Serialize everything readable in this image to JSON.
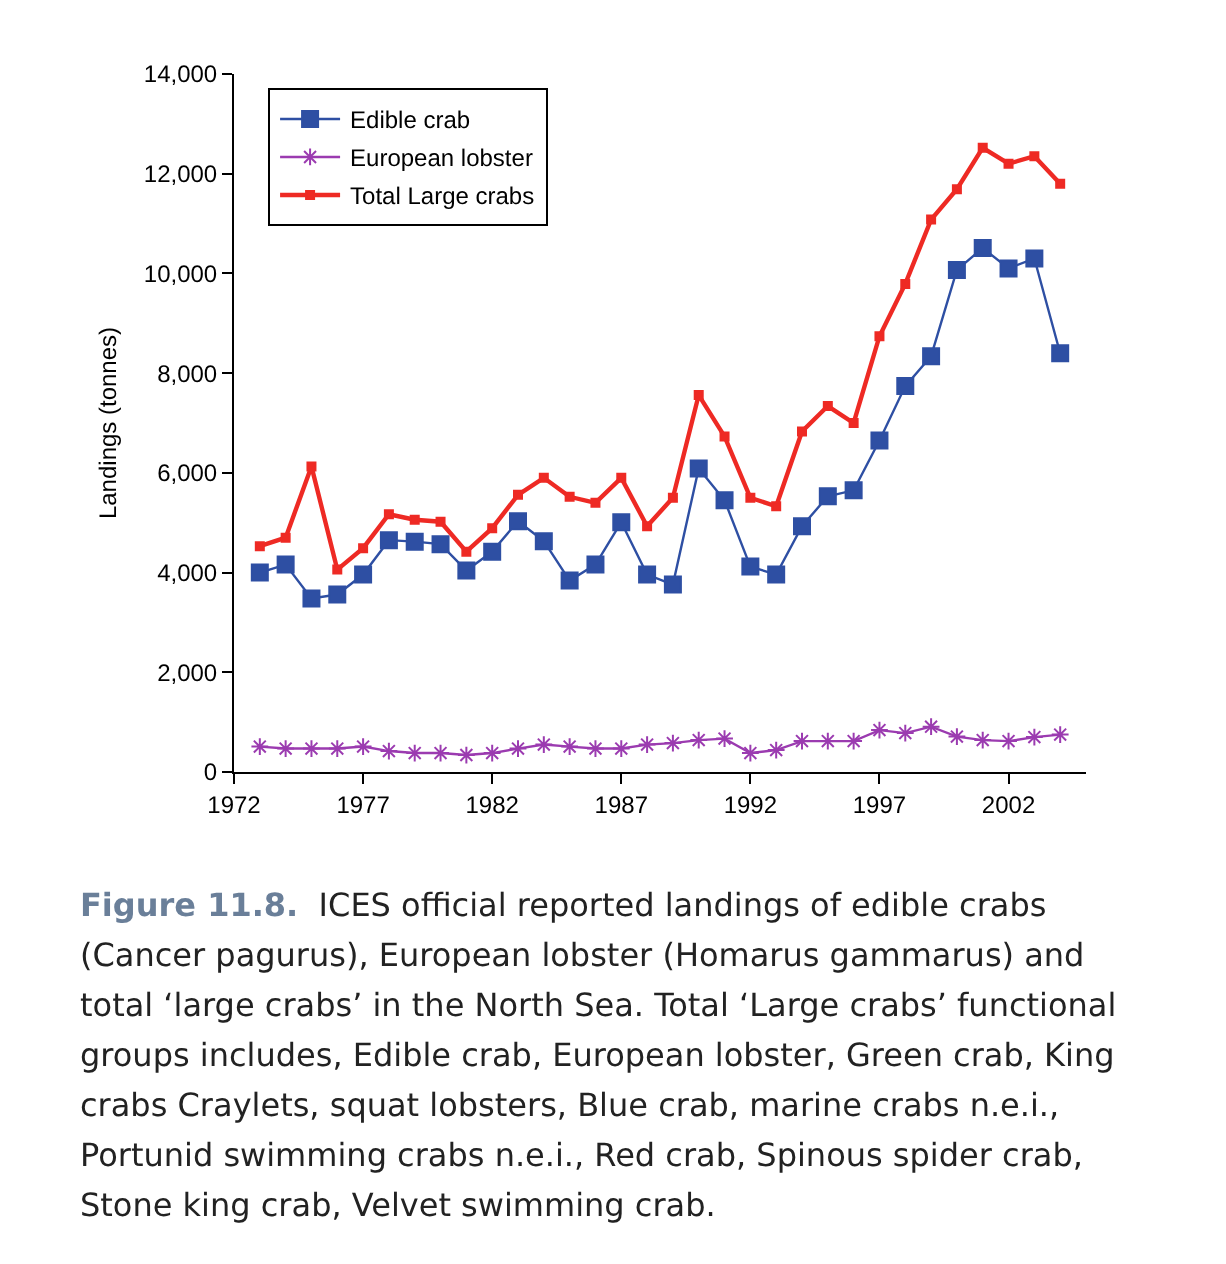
{
  "chart_data": {
    "type": "line",
    "ylabel": "Landings (tonnes)",
    "x": [
      1973,
      1974,
      1975,
      1976,
      1977,
      1978,
      1979,
      1980,
      1981,
      1982,
      1983,
      1984,
      1985,
      1986,
      1987,
      1988,
      1989,
      1990,
      1991,
      1992,
      1993,
      1994,
      1995,
      1996,
      1997,
      1998,
      1999,
      2000,
      2001,
      2002,
      2003,
      2004
    ],
    "series": [
      {
        "name": "Edible crab",
        "color": "#2e4fa3",
        "marker": "square",
        "values": [
          4000,
          4160,
          3480,
          3560,
          3960,
          4650,
          4620,
          4570,
          4040,
          4420,
          5030,
          4630,
          3840,
          4160,
          5010,
          3960,
          3760,
          6090,
          5450,
          4120,
          3960,
          4930,
          5530,
          5650,
          6650,
          7740,
          8340,
          10070,
          10510,
          10100,
          10300,
          8400
        ]
      },
      {
        "name": "European lobster",
        "color": "#9b3bb0",
        "marker": "cross",
        "values": [
          510,
          470,
          470,
          470,
          510,
          420,
          380,
          380,
          340,
          380,
          470,
          550,
          510,
          470,
          470,
          550,
          580,
          640,
          670,
          380,
          440,
          620,
          620,
          620,
          840,
          780,
          910,
          710,
          640,
          620,
          700,
          750
        ]
      },
      {
        "name": "Total Large crabs",
        "color": "#ee2a24",
        "marker": "square",
        "values": [
          4530,
          4700,
          6130,
          4060,
          4490,
          5170,
          5060,
          5020,
          4420,
          4890,
          5560,
          5900,
          5520,
          5400,
          5900,
          4930,
          5500,
          7560,
          6730,
          5500,
          5330,
          6830,
          7340,
          7000,
          8740,
          9790,
          11080,
          11690,
          12520,
          12200,
          12350,
          11800
        ]
      }
    ],
    "xlim": [
      1972,
      2005
    ],
    "xticks": [
      1972,
      1977,
      1982,
      1987,
      1992,
      1997,
      2002
    ],
    "ylim": [
      0,
      14000
    ],
    "yticks": [
      0,
      {
        "value": 2000,
        "label": "2,000"
      },
      {
        "value": 4000,
        "label": "4,000"
      },
      {
        "value": 6000,
        "label": "6,000"
      },
      {
        "value": 8000,
        "label": "8,000"
      },
      {
        "value": 10000,
        "label": "10,000"
      },
      {
        "value": 12000,
        "label": "12,000"
      },
      {
        "value": 14000,
        "label": "14,000"
      }
    ],
    "grid": false,
    "legend": "top left",
    "line_style": "solid",
    "annotations": [
      "Figure 11.8.",
      "ICES official reported landings of edible crabs (Cancer pagurus),  European lobster (Homarus gammarus) and total ‘large crabs’ in the North Sea. Total ‘Large crabs’ functional groups includes, Edible crab, European lobster, Green crab, King crabs Craylets, squat lobsters, Blue crab, marine crabs n.e.i., Portunid swimming crabs n.e.i., Red crab, Spinous spider crab, Stone king crab, Velvet swimming crab."
    ]
  }
}
